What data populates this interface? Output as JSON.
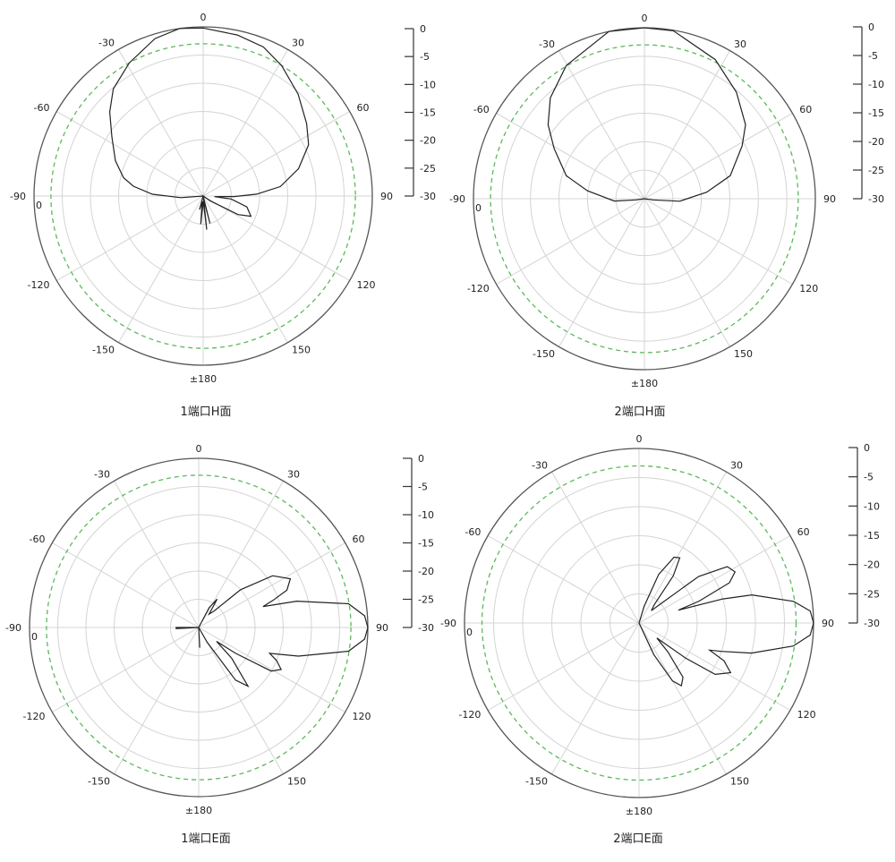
{
  "colors": {
    "grid": "#d4d4d4",
    "outer": "#555555",
    "reference": "#5cb85c",
    "pattern": "#222222"
  },
  "chart_data": [
    {
      "type": "polar-line",
      "title": "1端口H面",
      "angle_labels": [
        "0",
        "30",
        "60",
        "90",
        "120",
        "150",
        "±180",
        "-150",
        "-120",
        "-90",
        "-60",
        "-30"
      ],
      "radial_zero_label": "0",
      "scale_labels": [
        "0",
        "-5",
        "-10",
        "-15",
        "-20",
        "-25",
        "-30"
      ],
      "rlim": [
        -30,
        0
      ],
      "reference_db": -3,
      "grid": true,
      "angles": [
        -180,
        -175,
        -170,
        -165,
        -160,
        -100,
        -94,
        -88,
        -82,
        -77,
        -68,
        -57,
        -48,
        -40,
        -29,
        -17,
        -8,
        0,
        12,
        22,
        31,
        43,
        55,
        64,
        74,
        83,
        88,
        91,
        93,
        96,
        104,
        113,
        118,
        124,
        130,
        160,
        166,
        170,
        174,
        178
      ],
      "db": [
        -29,
        -25,
        -29,
        -27.5,
        -30,
        -30,
        -26,
        -21,
        -17.5,
        -15.5,
        -13.2,
        -10.7,
        -7.7,
        -5.2,
        -3,
        -0.8,
        0,
        -0.2,
        -0.8,
        -1.5,
        -3,
        -5.3,
        -7.6,
        -9.2,
        -12.4,
        -16.2,
        -20.5,
        -24.5,
        -28,
        -25,
        -22,
        -20.8,
        -23,
        -28.5,
        -30,
        -30,
        -25,
        -29.5,
        -24,
        -29
      ]
    },
    {
      "type": "polar-line",
      "title": "2端口H面",
      "angle_labels": [
        "0",
        "30",
        "60",
        "90",
        "120",
        "150",
        "±180",
        "-150",
        "-120",
        "-90",
        "-60",
        "-30"
      ],
      "radial_zero_label": "0",
      "scale_labels": [
        "0",
        "-5",
        "-10",
        "-15",
        "-20",
        "-25",
        "-30"
      ],
      "rlim": [
        -30,
        0
      ],
      "reference_db": -3,
      "grid": true,
      "angles": [
        -180,
        -100,
        -98,
        -94.5,
        -82,
        -73.6,
        -61,
        -52.5,
        -43,
        -30.4,
        -12,
        0,
        9.8,
        27,
        40.8,
        53.8,
        61.6,
        75,
        84,
        94,
        98,
        100,
        180
      ],
      "db": [
        -30,
        -30,
        -28.5,
        -24.7,
        -19.9,
        -15.7,
        -11.9,
        -8.7,
        -5.8,
        -2.9,
        0,
        0,
        -0.1,
        -2.6,
        -5.3,
        -8,
        -10.5,
        -14.4,
        -19,
        -23.8,
        -28.5,
        -30,
        -30
      ]
    },
    {
      "type": "polar-line",
      "title": "1端口E面",
      "angle_labels": [
        "0",
        "30",
        "60",
        "90",
        "120",
        "150",
        "±180",
        "-150",
        "-120",
        "-90",
        "-60",
        "-30"
      ],
      "radial_zero_label": "0",
      "scale_labels": [
        "0",
        "-5",
        "-10",
        "-15",
        "-20",
        "-25",
        "-30"
      ],
      "rlim": [
        -30,
        0
      ],
      "reference_db": -3,
      "grid": true,
      "angles": [
        -180,
        -178,
        -100,
        -93,
        -90,
        -87,
        0,
        20,
        28,
        33,
        38,
        43,
        48,
        55,
        62,
        67,
        70,
        72,
        75,
        81,
        86,
        90,
        94,
        99,
        106,
        110,
        113,
        117,
        121,
        125,
        128,
        133,
        140,
        145,
        150,
        160,
        172,
        177,
        180
      ],
      "db": [
        -30,
        -30,
        -30,
        -26,
        -26,
        -30,
        -30,
        -30,
        -26,
        -24,
        -27,
        -26,
        -20,
        -14,
        -11.6,
        -13,
        -16,
        -18,
        -12,
        -3.1,
        -0.5,
        0,
        -0.5,
        -3.1,
        -11.6,
        -16.6,
        -15,
        -13.6,
        -15,
        -22,
        -26,
        -22,
        -16.4,
        -18.6,
        -27,
        -30,
        -30,
        -26.4,
        -30
      ]
    },
    {
      "type": "polar-line",
      "title": "2端口E面",
      "angle_labels": [
        "0",
        "30",
        "60",
        "90",
        "120",
        "150",
        "±180",
        "-150",
        "-120",
        "-90",
        "-60",
        "-30"
      ],
      "radial_zero_label": "0",
      "scale_labels": [
        "0",
        "-5",
        "-10",
        "-15",
        "-20",
        "-25",
        "-30"
      ],
      "rlim": [
        -30,
        0
      ],
      "reference_db": -3,
      "grid": true,
      "angles": [
        -180,
        0,
        10,
        17,
        22,
        28,
        32,
        36,
        40,
        45,
        48,
        52,
        57.4,
        62,
        66,
        70,
        72,
        74,
        76,
        82,
        86,
        90,
        94,
        98.5,
        105,
        109,
        111,
        114,
        118.5,
        124,
        127,
        130,
        135,
        141,
        146,
        150,
        155,
        160,
        180
      ],
      "db": [
        -30,
        -30,
        -30,
        -27,
        -21,
        -17.2,
        -16.8,
        -20,
        -26,
        -27,
        -25.4,
        -17,
        -12,
        -11.3,
        -13,
        -19,
        -22.9,
        -15,
        -10,
        -3.2,
        -0.5,
        0,
        -0.5,
        -3.2,
        -10,
        -15,
        -17,
        -14,
        -12.1,
        -14.2,
        -20,
        -26,
        -23,
        -18,
        -17,
        -18.5,
        -24,
        -30,
        -30
      ]
    }
  ]
}
